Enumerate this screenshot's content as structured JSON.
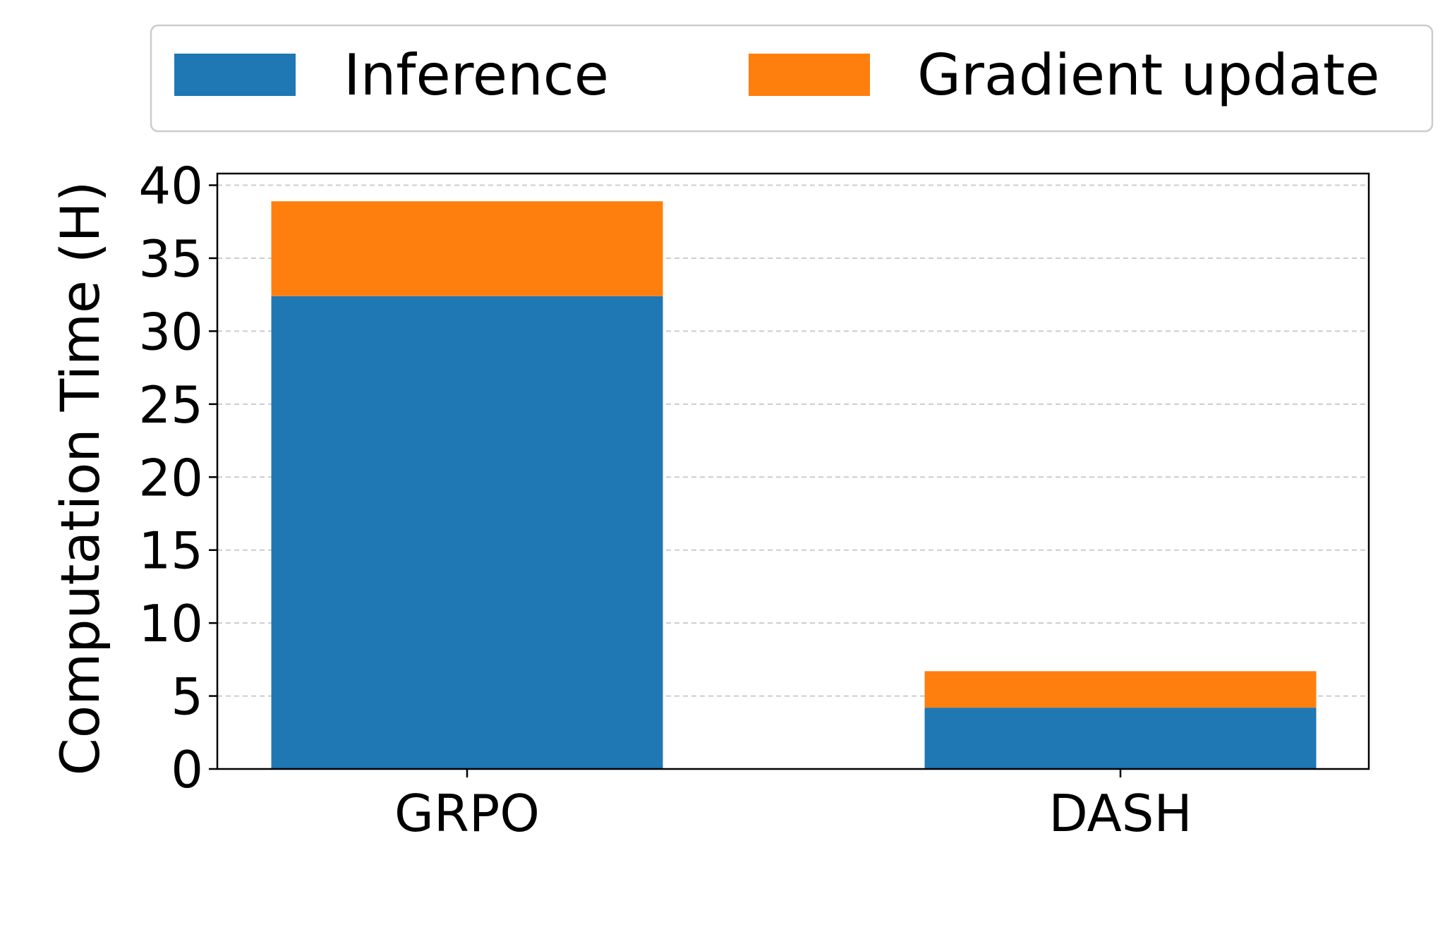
{
  "chart_data": {
    "type": "bar",
    "stacked": true,
    "title": "",
    "xlabel": "",
    "ylabel": "Computation Time (H)",
    "categories": [
      "GRPO",
      "DASH"
    ],
    "series": [
      {
        "name": "Inference",
        "values": [
          32.4,
          4.2
        ],
        "color": "#1f77b4"
      },
      {
        "name": "Gradient update",
        "values": [
          6.5,
          2.5
        ],
        "color": "#ff7f0e"
      }
    ],
    "ylim": [
      0,
      40.8
    ],
    "yticks": [
      0,
      5,
      10,
      15,
      20,
      25,
      30,
      35,
      40
    ],
    "grid": "horizontal-dashed",
    "legend_position": "top"
  }
}
